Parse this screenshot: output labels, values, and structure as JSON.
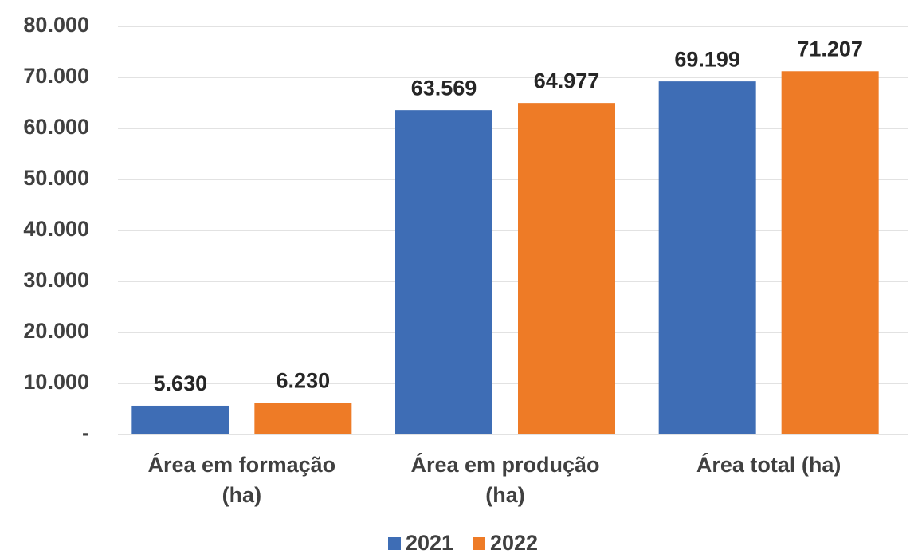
{
  "chart_data": {
    "type": "bar",
    "categories": [
      [
        "Área em formação",
        "(ha)"
      ],
      [
        "Área em produção",
        "(ha)"
      ],
      [
        "Área total (ha)"
      ]
    ],
    "series": [
      {
        "name": "2021",
        "color": "#3e6db5",
        "values": [
          5630,
          63569,
          69199
        ],
        "value_labels": [
          "5.630",
          "63.569",
          "69.199"
        ]
      },
      {
        "name": "2022",
        "color": "#ee7b26",
        "values": [
          6230,
          64977,
          71207
        ],
        "value_labels": [
          "6.230",
          "64.977",
          "71.207"
        ]
      }
    ],
    "ylim": [
      0,
      80000
    ],
    "yticks": [
      {
        "value": 0,
        "label": "-"
      },
      {
        "value": 10000,
        "label": "10.000"
      },
      {
        "value": 20000,
        "label": "20.000"
      },
      {
        "value": 30000,
        "label": "30.000"
      },
      {
        "value": 40000,
        "label": "40.000"
      },
      {
        "value": 50000,
        "label": "50.000"
      },
      {
        "value": 60000,
        "label": "60.000"
      },
      {
        "value": 70000,
        "label": "70.000"
      },
      {
        "value": 80000,
        "label": "80.000"
      }
    ],
    "grid": true,
    "legend": "bottom"
  }
}
